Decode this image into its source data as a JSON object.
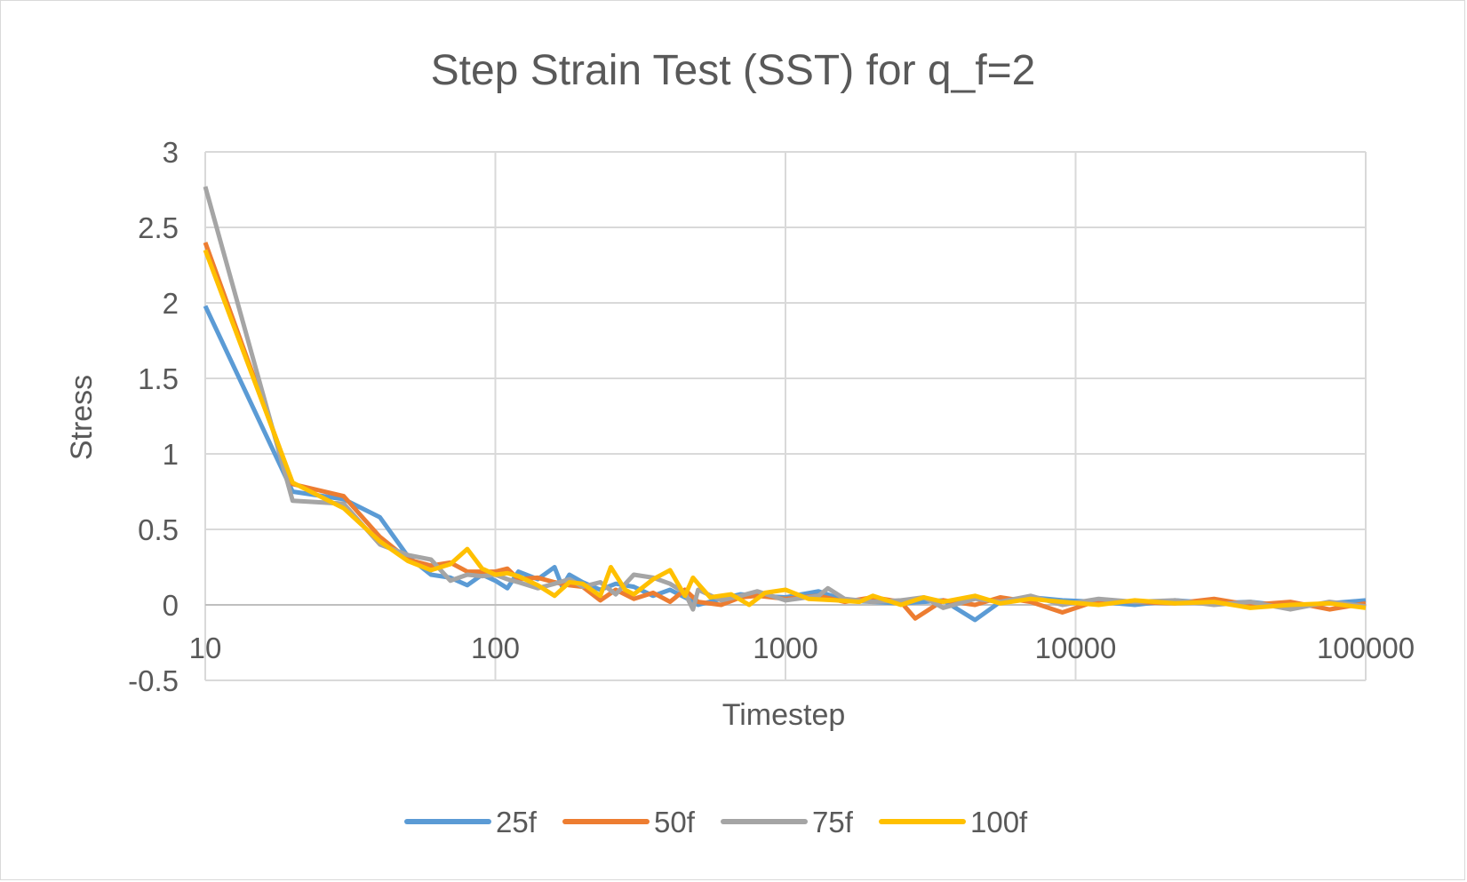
{
  "chart_data": {
    "type": "line",
    "title": "Step Strain Test (SST) for q_f=2",
    "xlabel": "Timestep",
    "ylabel": "Stress",
    "x_scale": "log",
    "xlim": [
      10,
      100000
    ],
    "ylim": [
      -0.5,
      3
    ],
    "x_ticks": [
      "10",
      "100",
      "1000",
      "10000",
      "100000"
    ],
    "y_ticks": [
      "-0.5",
      "0",
      "0.5",
      "1",
      "1.5",
      "2",
      "2.5",
      "3"
    ],
    "grid": true,
    "legend_position": "bottom",
    "series": [
      {
        "name": "25f",
        "color": "#5b9bd5",
        "points": [
          [
            10,
            1.98
          ],
          [
            20,
            0.75
          ],
          [
            30,
            0.7
          ],
          [
            40,
            0.58
          ],
          [
            50,
            0.32
          ],
          [
            60,
            0.2
          ],
          [
            70,
            0.18
          ],
          [
            80,
            0.13
          ],
          [
            90,
            0.2
          ],
          [
            100,
            0.16
          ],
          [
            110,
            0.11
          ],
          [
            120,
            0.22
          ],
          [
            140,
            0.17
          ],
          [
            160,
            0.25
          ],
          [
            170,
            0.12
          ],
          [
            180,
            0.2
          ],
          [
            200,
            0.15
          ],
          [
            230,
            0.1
          ],
          [
            260,
            0.14
          ],
          [
            300,
            0.12
          ],
          [
            350,
            0.06
          ],
          [
            400,
            0.1
          ],
          [
            450,
            0.05
          ],
          [
            500,
            0.0
          ],
          [
            600,
            0.04
          ],
          [
            700,
            0.07
          ],
          [
            800,
            0.06
          ],
          [
            1000,
            0.05
          ],
          [
            1300,
            0.09
          ],
          [
            1600,
            0.03
          ],
          [
            2000,
            0.02
          ],
          [
            2500,
            0.01
          ],
          [
            3000,
            0.02
          ],
          [
            3500,
            0.03
          ],
          [
            4500,
            -0.1
          ],
          [
            5500,
            0.02
          ],
          [
            7000,
            0.05
          ],
          [
            9000,
            0.03
          ],
          [
            12000,
            0.02
          ],
          [
            16000,
            0.0
          ],
          [
            22000,
            0.03
          ],
          [
            30000,
            0.01
          ],
          [
            40000,
            0.02
          ],
          [
            55000,
            -0.01
          ],
          [
            75000,
            0.01
          ],
          [
            100000,
            0.03
          ]
        ]
      },
      {
        "name": "50f",
        "color": "#ed7d31",
        "points": [
          [
            10,
            2.4
          ],
          [
            20,
            0.8
          ],
          [
            30,
            0.72
          ],
          [
            40,
            0.45
          ],
          [
            50,
            0.3
          ],
          [
            60,
            0.26
          ],
          [
            70,
            0.28
          ],
          [
            80,
            0.22
          ],
          [
            90,
            0.22
          ],
          [
            100,
            0.22
          ],
          [
            110,
            0.24
          ],
          [
            120,
            0.17
          ],
          [
            140,
            0.18
          ],
          [
            160,
            0.15
          ],
          [
            180,
            0.13
          ],
          [
            200,
            0.12
          ],
          [
            230,
            0.03
          ],
          [
            260,
            0.1
          ],
          [
            300,
            0.04
          ],
          [
            350,
            0.08
          ],
          [
            400,
            0.02
          ],
          [
            450,
            0.1
          ],
          [
            500,
            0.02
          ],
          [
            600,
            0.0
          ],
          [
            700,
            0.05
          ],
          [
            800,
            0.06
          ],
          [
            1000,
            0.04
          ],
          [
            1300,
            0.06
          ],
          [
            1600,
            0.02
          ],
          [
            2000,
            0.05
          ],
          [
            2500,
            0.02
          ],
          [
            2800,
            -0.09
          ],
          [
            3500,
            0.03
          ],
          [
            4500,
            0.0
          ],
          [
            5500,
            0.05
          ],
          [
            7000,
            0.02
          ],
          [
            9000,
            -0.05
          ],
          [
            12000,
            0.03
          ],
          [
            16000,
            0.02
          ],
          [
            22000,
            0.01
          ],
          [
            30000,
            0.04
          ],
          [
            40000,
            0.0
          ],
          [
            55000,
            0.02
          ],
          [
            75000,
            -0.03
          ],
          [
            100000,
            0.01
          ]
        ]
      },
      {
        "name": "75f",
        "color": "#a5a5a5",
        "points": [
          [
            10,
            2.77
          ],
          [
            20,
            0.69
          ],
          [
            30,
            0.67
          ],
          [
            40,
            0.4
          ],
          [
            50,
            0.33
          ],
          [
            60,
            0.3
          ],
          [
            70,
            0.16
          ],
          [
            80,
            0.2
          ],
          [
            90,
            0.19
          ],
          [
            100,
            0.2
          ],
          [
            110,
            0.17
          ],
          [
            120,
            0.15
          ],
          [
            140,
            0.11
          ],
          [
            160,
            0.14
          ],
          [
            180,
            0.17
          ],
          [
            200,
            0.12
          ],
          [
            230,
            0.15
          ],
          [
            260,
            0.07
          ],
          [
            300,
            0.2
          ],
          [
            350,
            0.18
          ],
          [
            400,
            0.14
          ],
          [
            450,
            0.08
          ],
          [
            480,
            -0.03
          ],
          [
            500,
            0.1
          ],
          [
            600,
            0.03
          ],
          [
            700,
            0.06
          ],
          [
            800,
            0.09
          ],
          [
            1000,
            0.03
          ],
          [
            1300,
            0.06
          ],
          [
            1400,
            0.11
          ],
          [
            1600,
            0.04
          ],
          [
            2000,
            0.02
          ],
          [
            2500,
            0.03
          ],
          [
            3000,
            0.05
          ],
          [
            3500,
            -0.02
          ],
          [
            4500,
            0.04
          ],
          [
            5500,
            0.02
          ],
          [
            7000,
            0.06
          ],
          [
            9000,
            0.0
          ],
          [
            12000,
            0.04
          ],
          [
            16000,
            0.02
          ],
          [
            22000,
            0.03
          ],
          [
            30000,
            0.0
          ],
          [
            40000,
            0.02
          ],
          [
            55000,
            -0.03
          ],
          [
            75000,
            0.02
          ],
          [
            100000,
            -0.01
          ]
        ]
      },
      {
        "name": "100f",
        "color": "#ffc000",
        "points": [
          [
            10,
            2.35
          ],
          [
            20,
            0.81
          ],
          [
            30,
            0.64
          ],
          [
            40,
            0.42
          ],
          [
            50,
            0.29
          ],
          [
            60,
            0.23
          ],
          [
            70,
            0.27
          ],
          [
            80,
            0.37
          ],
          [
            90,
            0.24
          ],
          [
            100,
            0.2
          ],
          [
            110,
            0.21
          ],
          [
            120,
            0.19
          ],
          [
            140,
            0.13
          ],
          [
            160,
            0.06
          ],
          [
            180,
            0.15
          ],
          [
            200,
            0.14
          ],
          [
            230,
            0.06
          ],
          [
            250,
            0.25
          ],
          [
            280,
            0.1
          ],
          [
            300,
            0.07
          ],
          [
            350,
            0.17
          ],
          [
            400,
            0.23
          ],
          [
            450,
            0.06
          ],
          [
            480,
            0.18
          ],
          [
            500,
            0.14
          ],
          [
            550,
            0.05
          ],
          [
            650,
            0.07
          ],
          [
            750,
            0.0
          ],
          [
            850,
            0.08
          ],
          [
            1000,
            0.1
          ],
          [
            1200,
            0.04
          ],
          [
            1500,
            0.03
          ],
          [
            1800,
            0.02
          ],
          [
            2000,
            0.06
          ],
          [
            2500,
            0.0
          ],
          [
            3000,
            0.05
          ],
          [
            3500,
            0.02
          ],
          [
            4500,
            0.06
          ],
          [
            5500,
            0.01
          ],
          [
            7000,
            0.04
          ],
          [
            9000,
            0.02
          ],
          [
            12000,
            0.0
          ],
          [
            16000,
            0.03
          ],
          [
            22000,
            0.01
          ],
          [
            30000,
            0.02
          ],
          [
            40000,
            -0.02
          ],
          [
            55000,
            0.0
          ],
          [
            75000,
            0.01
          ],
          [
            100000,
            -0.02
          ]
        ]
      }
    ]
  }
}
